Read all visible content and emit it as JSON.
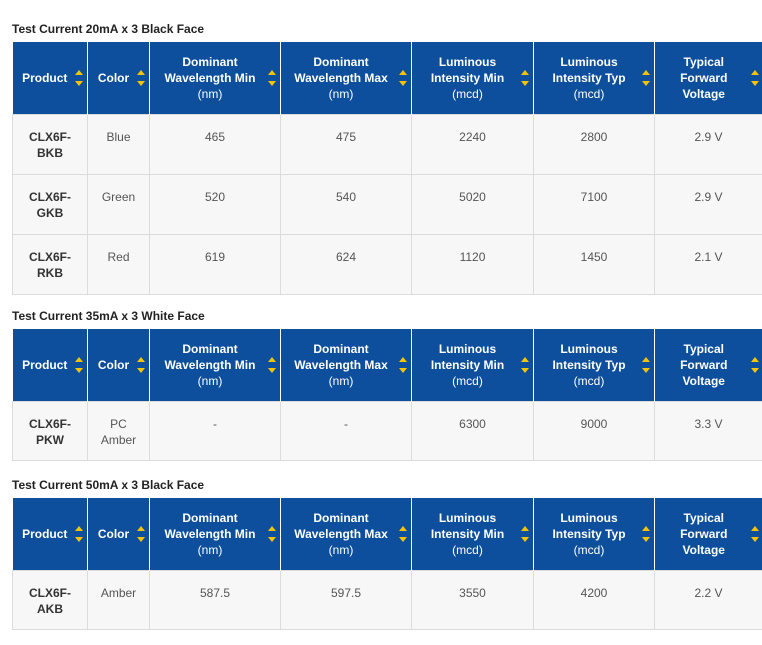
{
  "sections": [
    {
      "title": "Test Current 20mA x 3 Black Face",
      "rows": [
        {
          "product": "CLX6F-\nBKB",
          "color": "Blue",
          "dmin": "465",
          "dmax": "475",
          "lmin": "2240",
          "ltyp": "2800",
          "vf": "2.9 V"
        },
        {
          "product": "CLX6F-\nGKB",
          "color": "Green",
          "dmin": "520",
          "dmax": "540",
          "lmin": "5020",
          "ltyp": "7100",
          "vf": "2.9 V"
        },
        {
          "product": "CLX6F-\nRKB",
          "color": "Red",
          "dmin": "619",
          "dmax": "624",
          "lmin": "1120",
          "ltyp": "1450",
          "vf": "2.1 V"
        }
      ]
    },
    {
      "title": "Test Current 35mA x 3 White Face",
      "rows": [
        {
          "product": "CLX6F-\nPKW",
          "color": "PC\nAmber",
          "dmin": "-",
          "dmax": "-",
          "lmin": "6300",
          "ltyp": "9000",
          "vf": "3.3 V"
        }
      ]
    },
    {
      "title": "Test Current 50mA x 3 Black Face",
      "rows": [
        {
          "product": "CLX6F-\nAKB",
          "color": "Amber",
          "dmin": "587.5",
          "dmax": "597.5",
          "lmin": "3550",
          "ltyp": "4200",
          "vf": "2.2 V"
        }
      ]
    }
  ],
  "headers": {
    "product": "Product",
    "color": "Color",
    "dmin": "Dominant\nWavelength Min",
    "dmin_unit": "(nm)",
    "dmax": "Dominant\nWavelength Max",
    "dmax_unit": "(nm)",
    "lmin": "Luminous\nIntensity Min",
    "lmin_unit": "(mcd)",
    "ltyp": "Luminous\nIntensity Typ",
    "ltyp_unit": "(mcd)",
    "vf": "Typical\nForward\nVoltage"
  },
  "colors": {
    "header_bg": "#0d4f9c",
    "sort_arrow": "#f5c400",
    "cell_bg": "#f7f7f7"
  },
  "icons": {
    "sort": "sort-arrows-icon"
  }
}
